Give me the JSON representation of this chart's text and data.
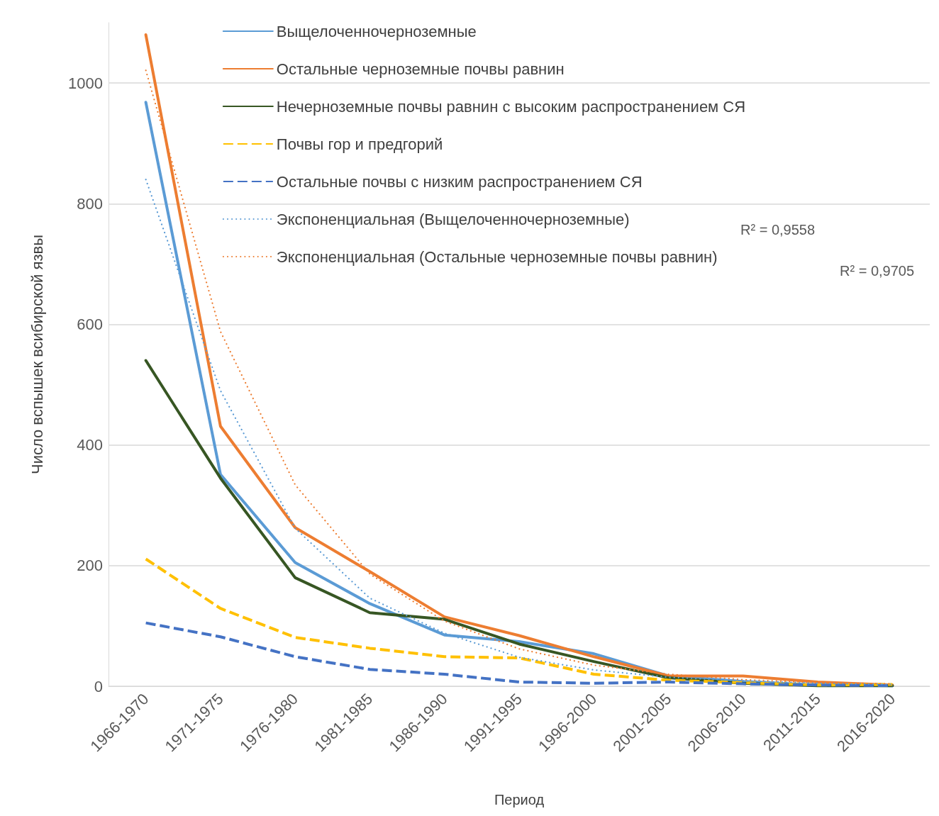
{
  "chart_data": {
    "type": "line",
    "xlabel": "Период",
    "ylabel": "Число вспышек всибирской язвы",
    "categories": [
      "1966-1970",
      "1971-1975",
      "1976-1980",
      "1981-1985",
      "1986-1990",
      "1991-1995",
      "1996-2000",
      "2001-2005",
      "2006-2010",
      "2011-2015",
      "2016-2020"
    ],
    "series": [
      {
        "name": "Выщелоченночерноземные",
        "color": "#5b9bd5",
        "line_style": "solid",
        "values": [
          968,
          351,
          205,
          137,
          85,
          74,
          54,
          17,
          8,
          2,
          1
        ]
      },
      {
        "name": "Остальные черноземные почвы равнин",
        "color": "#ed7d31",
        "line_style": "solid",
        "values": [
          1080,
          431,
          263,
          190,
          115,
          84,
          49,
          17,
          17,
          7,
          2
        ]
      },
      {
        "name": "Нечерноземные почвы равнин с высоким распространением СЯ",
        "color": "#375623",
        "line_style": "solid",
        "values": [
          540,
          345,
          180,
          122,
          111,
          70,
          41,
          14,
          5,
          1,
          1
        ]
      },
      {
        "name": "Почвы гор и предгорий",
        "color": "#ffc000",
        "line_style": "dashed",
        "values": [
          211,
          129,
          81,
          63,
          49,
          47,
          20,
          10,
          6,
          2,
          3
        ]
      },
      {
        "name": "Остальные почвы с низким распространением СЯ",
        "color": "#4472c4",
        "line_style": "dashed",
        "values": [
          105,
          82,
          49,
          28,
          20,
          7,
          5,
          7,
          4,
          2,
          1
        ]
      },
      {
        "name": "Экспоненциальная (Выщелоченночерноземные)",
        "color": "#5b9bd5",
        "line_style": "dotted",
        "values": [
          840,
          490,
          262,
          146,
          88,
          48,
          27,
          15,
          9,
          5,
          3
        ]
      },
      {
        "name": "Экспоненциальная (Остальные черноземные почвы равнин)",
        "color": "#ed7d31",
        "line_style": "dotted",
        "values": [
          1021,
          588,
          334,
          186,
          108,
          62,
          35,
          20,
          11,
          6,
          4
        ]
      }
    ],
    "ylim": [
      0,
      1100
    ],
    "yticks": [
      0,
      200,
      400,
      600,
      800,
      1000
    ],
    "grid": "y",
    "legend": "top",
    "annotations": [
      "R² = 0,9558",
      "R² = 0,9705"
    ]
  }
}
